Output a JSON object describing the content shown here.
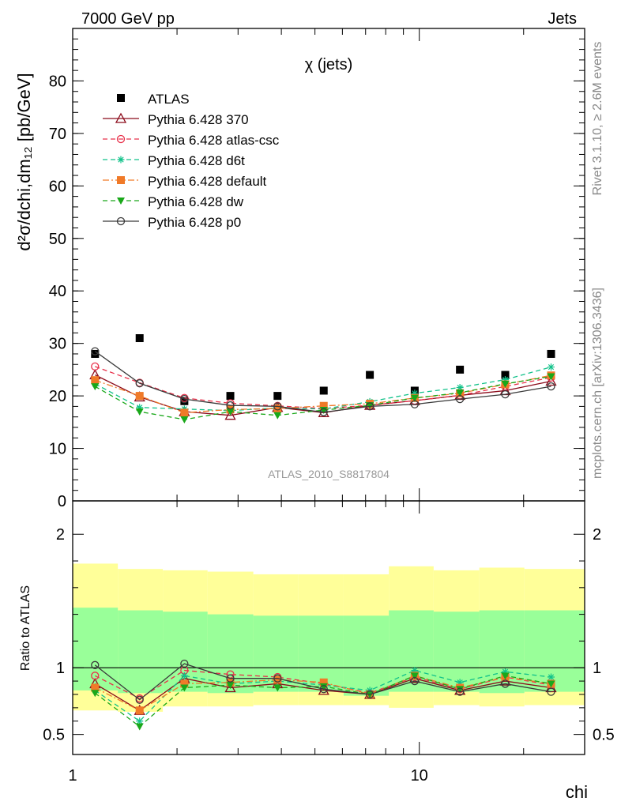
{
  "header": {
    "left": "7000 GeV pp",
    "right": "Jets"
  },
  "side_text": {
    "rivet": "Rivet 3.1.10, ≥ 2.6M events",
    "mcplots": "mcplots.cern.ch [arXiv:1306.3436]"
  },
  "chart_data": [
    {
      "type": "scatter",
      "title": "χ (jets)",
      "ylabel": "d²σ/dchi,dm₁₂ [pb/GeV]",
      "analysis_label": "ATLAS_2010_S8817804",
      "x_scale": "log",
      "xlim": [
        1,
        30
      ],
      "ylim": [
        0,
        90
      ],
      "y_ticks": [
        0,
        10,
        20,
        30,
        40,
        50,
        60,
        70,
        80
      ],
      "legend_position": "top-left",
      "x": [
        1.16,
        1.56,
        2.1,
        2.85,
        3.9,
        5.3,
        7.2,
        9.7,
        13.1,
        17.7,
        24.0
      ],
      "series": [
        {
          "name": "ATLAS",
          "marker": "filled-square",
          "color": "#000000",
          "line": "none",
          "values": [
            28,
            31,
            19,
            20,
            20,
            21,
            24,
            21,
            25,
            24,
            28
          ]
        },
        {
          "name": "Pythia 6.428 370",
          "marker": "open-triangle",
          "color": "#8b0a1a",
          "line": "solid",
          "values": [
            24,
            19.8,
            17,
            16.3,
            17.8,
            16.8,
            18.2,
            19.1,
            20.1,
            21,
            22.8
          ]
        },
        {
          "name": "Pythia 6.428 atlas-csc",
          "marker": "open-circle",
          "color": "#e8304a",
          "line": "dashed",
          "values": [
            25.6,
            22.5,
            19.6,
            18.6,
            18.1,
            17.6,
            18.2,
            19.1,
            20.1,
            21.8,
            23.5
          ]
        },
        {
          "name": "Pythia 6.428 d6t",
          "marker": "star",
          "color": "#12c28a",
          "line": "dashed",
          "values": [
            22.3,
            17.8,
            17.5,
            17.2,
            17.7,
            17.5,
            18.9,
            20.5,
            21.6,
            23.1,
            25.5
          ]
        },
        {
          "name": "Pythia 6.428 default",
          "marker": "filled-square",
          "color": "#f07a28",
          "line": "dashdot",
          "values": [
            23,
            20,
            16.8,
            17.4,
            17.6,
            18.1,
            18.5,
            19.6,
            20.5,
            22.2,
            23.9
          ]
        },
        {
          "name": "Pythia 6.428 dw",
          "marker": "filled-triangle-down",
          "color": "#1aa81a",
          "line": "dashed",
          "values": [
            21.8,
            17,
            15.5,
            17,
            16.3,
            17.3,
            18.2,
            19.6,
            20.6,
            22.3,
            23.7
          ]
        },
        {
          "name": "Pythia 6.428 p0",
          "marker": "open-circle",
          "color": "#3a3a3a",
          "line": "solid",
          "values": [
            28.5,
            22.4,
            19.4,
            18.2,
            18,
            16.9,
            18,
            18.4,
            19.4,
            20.3,
            21.8
          ]
        }
      ]
    },
    {
      "type": "line",
      "ylabel": "Ratio to ATLAS",
      "xlabel": "chi",
      "x_scale": "log",
      "xlim": [
        1,
        30
      ],
      "ylim": [
        0.35,
        2.25
      ],
      "y_ticks": [
        0.5,
        1,
        2
      ],
      "x_ticks": [
        1,
        10
      ],
      "bin_edges": [
        1,
        1.35,
        1.82,
        2.45,
        3.32,
        4.48,
        6.05,
        8.17,
        11.0,
        14.9,
        20.1,
        30
      ],
      "band_outer": {
        "color": "#ffff99",
        "lo": [
          0.68,
          0.67,
          0.71,
          0.71,
          0.72,
          0.72,
          0.72,
          0.7,
          0.72,
          0.71,
          0.72
        ],
        "hi": [
          1.78,
          1.74,
          1.73,
          1.72,
          1.7,
          1.7,
          1.7,
          1.76,
          1.73,
          1.75,
          1.74
        ]
      },
      "band_inner": {
        "color": "#99ff99",
        "lo": [
          0.83,
          0.81,
          0.82,
          0.81,
          0.82,
          0.82,
          0.79,
          0.82,
          0.82,
          0.81,
          0.82
        ],
        "hi": [
          1.45,
          1.43,
          1.42,
          1.4,
          1.39,
          1.39,
          1.39,
          1.43,
          1.42,
          1.43,
          1.43
        ]
      },
      "reference_line": 1,
      "x": [
        1.16,
        1.56,
        2.1,
        2.85,
        3.9,
        5.3,
        7.2,
        9.7,
        13.1,
        17.7,
        24.0
      ],
      "series": [
        {
          "name": "Pythia 6.428 370",
          "marker": "open-triangle",
          "color": "#8b0a1a",
          "line": "solid",
          "values": [
            0.88,
            0.68,
            0.92,
            0.85,
            0.88,
            0.83,
            0.8,
            0.92,
            0.83,
            0.9,
            0.85
          ]
        },
        {
          "name": "Pythia 6.428 atlas-csc",
          "marker": "open-circle",
          "color": "#e8304a",
          "line": "dashed",
          "values": [
            0.94,
            0.77,
            0.98,
            0.95,
            0.93,
            0.88,
            0.81,
            0.93,
            0.84,
            0.93,
            0.87
          ]
        },
        {
          "name": "Pythia 6.428 d6t",
          "marker": "star",
          "color": "#12c28a",
          "line": "dashed",
          "values": [
            0.83,
            0.6,
            0.94,
            0.88,
            0.9,
            0.87,
            0.83,
            0.98,
            0.89,
            0.97,
            0.93
          ]
        },
        {
          "name": "Pythia 6.428 default",
          "marker": "filled-square",
          "color": "#f07a28",
          "line": "dashdot",
          "values": [
            0.85,
            0.68,
            0.88,
            0.89,
            0.91,
            0.89,
            0.8,
            0.94,
            0.85,
            0.93,
            0.88
          ]
        },
        {
          "name": "Pythia 6.428 dw",
          "marker": "filled-triangle-down",
          "color": "#1aa81a",
          "line": "dashed",
          "values": [
            0.81,
            0.56,
            0.85,
            0.87,
            0.85,
            0.86,
            0.8,
            0.94,
            0.84,
            0.94,
            0.88
          ]
        },
        {
          "name": "Pythia 6.428 p0",
          "marker": "open-circle",
          "color": "#3a3a3a",
          "line": "solid",
          "values": [
            1.02,
            0.76,
            1.03,
            0.92,
            0.92,
            0.84,
            0.8,
            0.9,
            0.82,
            0.88,
            0.82
          ]
        }
      ]
    }
  ]
}
